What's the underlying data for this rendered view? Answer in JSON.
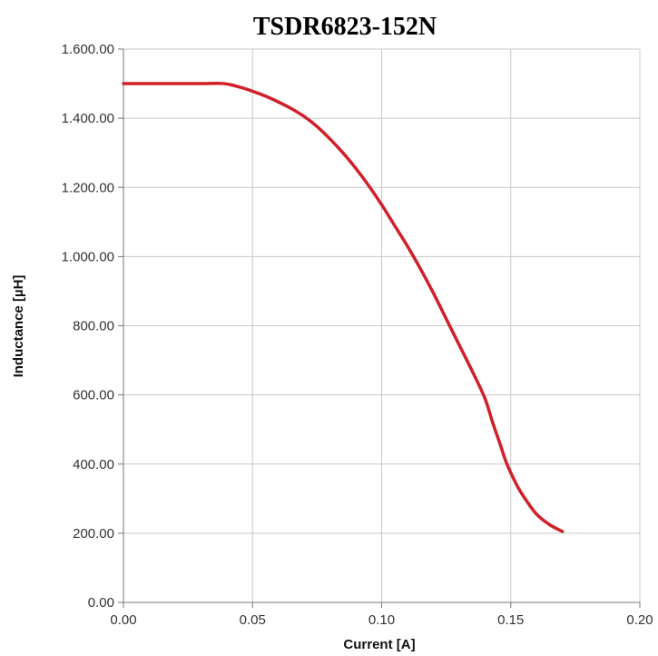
{
  "chart_data": {
    "type": "line",
    "title": "TSDR6823-152N",
    "xlabel": "Current [A]",
    "ylabel": "Inductance [µH]",
    "xlim": [
      0,
      0.2
    ],
    "ylim": [
      0,
      1600
    ],
    "x_ticks": [
      0,
      0.05,
      0.1,
      0.15,
      0.2
    ],
    "y_ticks": [
      0,
      200,
      400,
      600,
      800,
      1000,
      1200,
      1400,
      1600
    ],
    "x_tick_labels": [
      "0.00",
      "0.05",
      "0.10",
      "0.15",
      "0.20"
    ],
    "y_tick_labels": [
      "0.00",
      "200.00",
      "400.00",
      "600.00",
      "800.00",
      "1.000.00",
      "1.200.00",
      "1.400.00",
      "1.600.00"
    ],
    "grid": true,
    "series": [
      {
        "color": "#d0202a",
        "x": [
          0,
          0.01,
          0.02,
          0.03,
          0.039,
          0.045,
          0.05,
          0.055,
          0.06,
          0.065,
          0.07,
          0.075,
          0.08,
          0.085,
          0.09,
          0.095,
          0.1,
          0.105,
          0.11,
          0.115,
          0.12,
          0.125,
          0.13,
          0.135,
          0.14,
          0.143,
          0.146,
          0.148,
          0.15,
          0.153,
          0.156,
          0.16,
          0.165,
          0.17
        ],
        "y": [
          1500,
          1500,
          1500,
          1500,
          1500,
          1490,
          1478,
          1464,
          1447,
          1428,
          1405,
          1376,
          1340,
          1300,
          1255,
          1205,
          1150,
          1090,
          1030,
          965,
          895,
          820,
          745,
          670,
          590,
          520,
          455,
          410,
          375,
          330,
          295,
          255,
          225,
          205
        ]
      }
    ]
  }
}
